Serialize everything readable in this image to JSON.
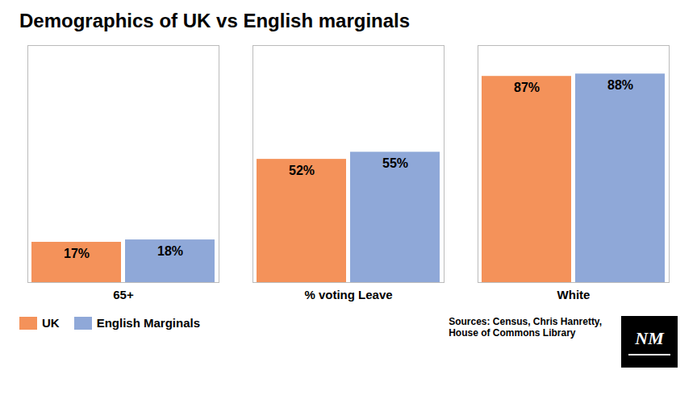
{
  "chart_data": {
    "type": "bar",
    "title": "Demographics of UK vs English marginals",
    "categories": [
      "65+",
      "% voting Leave",
      "White"
    ],
    "series": [
      {
        "name": "UK",
        "color": "#F4925A",
        "values": [
          17,
          52,
          87
        ],
        "value_labels": [
          "17%",
          "52%",
          "87%"
        ]
      },
      {
        "name": "English Marginals",
        "color": "#8FA8D8",
        "values": [
          18,
          55,
          88
        ],
        "value_labels": [
          "18%",
          "55%",
          "88%"
        ]
      }
    ],
    "ylim": [
      0,
      100
    ],
    "data_labels": true,
    "tick_labels": "x",
    "legend": "lower left",
    "annotations": [
      "Sources: Census, Chris Hanretty,\nHouse of Commons Library",
      "NM"
    ]
  }
}
